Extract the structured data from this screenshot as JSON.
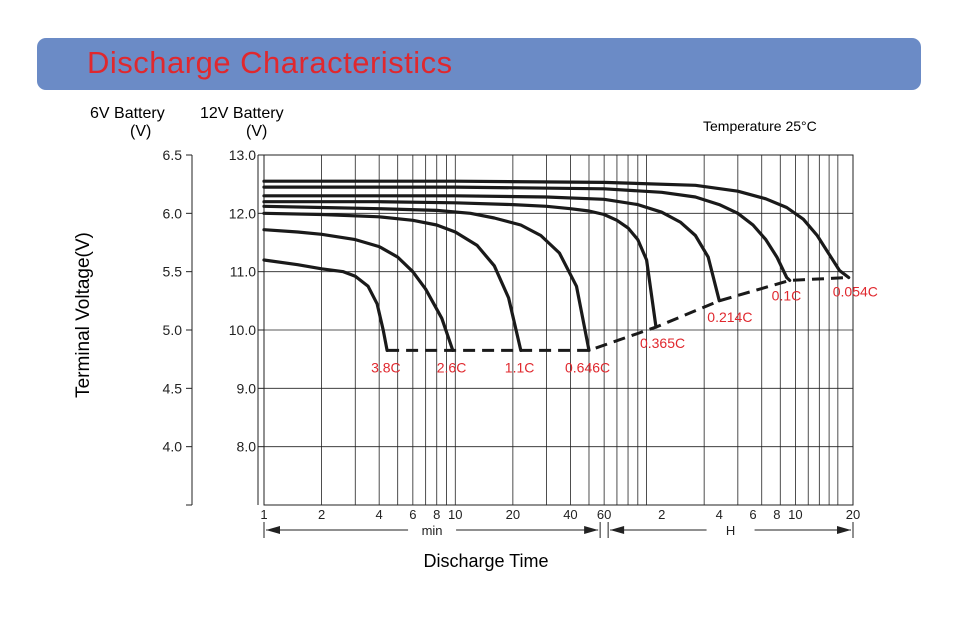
{
  "banner": {
    "title": "Discharge Characteristics",
    "color": "#6b8bc6",
    "title_color": "#e0282e"
  },
  "chart_data": {
    "type": "line",
    "title": "",
    "xlabel": "Discharge Time",
    "ylabel": "Terminal Voltage(V)",
    "note": "Temperature 25°C",
    "axis_6v": {
      "title": "6V Battery",
      "unit": "(V)",
      "ticks": [
        "6.5",
        "6.0",
        "5.5",
        "5.0",
        "4.5",
        "4.0"
      ]
    },
    "axis_12v": {
      "title": "12V Battery",
      "unit": "(V)",
      "ticks": [
        "13.0",
        "12.0",
        "11.0",
        "10.0",
        "9.0",
        "8.0"
      ]
    },
    "ylim": [
      7.0,
      13.0
    ],
    "x_scale": "log",
    "x_ticks_min": [
      "1",
      "2",
      "4",
      "6",
      "8",
      "10",
      "20",
      "40",
      "60"
    ],
    "x_ticks_h": [
      "2",
      "4",
      "6",
      "8",
      "10",
      "20"
    ],
    "x_unit_min": "min",
    "x_unit_h": "H",
    "x_unit_note": "x values in minutes",
    "series": [
      {
        "name": "3.8C",
        "x": [
          1,
          1.5,
          2,
          2.6,
          3,
          3.5,
          3.9,
          4.2,
          4.4
        ],
        "y": [
          11.2,
          11.12,
          11.05,
          11.0,
          10.92,
          10.75,
          10.45,
          10.0,
          9.65
        ]
      },
      {
        "name": "2.6C",
        "x": [
          1,
          1.5,
          2,
          3,
          4,
          5,
          6,
          7,
          8.5,
          9.7
        ],
        "y": [
          11.72,
          11.68,
          11.64,
          11.55,
          11.43,
          11.25,
          11.0,
          10.7,
          10.2,
          9.65
        ]
      },
      {
        "name": "1.1C",
        "x": [
          1,
          2,
          4,
          6,
          8,
          10,
          13,
          16,
          19,
          22
        ],
        "y": [
          12.0,
          11.98,
          11.94,
          11.88,
          11.8,
          11.68,
          11.45,
          11.1,
          10.55,
          9.65
        ]
      },
      {
        "name": "0.646C",
        "x": [
          1,
          2,
          4,
          8,
          12,
          16,
          22,
          28,
          35,
          43,
          50
        ],
        "y": [
          12.12,
          12.1,
          12.08,
          12.05,
          12.0,
          11.92,
          11.8,
          11.62,
          11.32,
          10.75,
          9.65
        ]
      },
      {
        "name": "0.365C",
        "x": [
          1,
          4,
          10,
          20,
          30,
          40,
          50,
          60,
          70,
          80,
          90,
          100,
          112
        ],
        "y": [
          12.2,
          12.2,
          12.18,
          12.15,
          12.12,
          12.08,
          12.04,
          11.98,
          11.88,
          11.75,
          11.55,
          11.2,
          10.05
        ]
      },
      {
        "name": "0.214C",
        "x": [
          1,
          10,
          30,
          60,
          90,
          120,
          150,
          180,
          210,
          240
        ],
        "y": [
          12.3,
          12.3,
          12.28,
          12.24,
          12.15,
          12.02,
          11.85,
          11.62,
          11.25,
          10.5
        ]
      },
      {
        "name": "0.1C",
        "x": [
          1,
          10,
          60,
          120,
          180,
          240,
          300,
          360,
          420,
          480,
          540,
          560
        ],
        "y": [
          12.45,
          12.45,
          12.42,
          12.36,
          12.28,
          12.15,
          12.0,
          11.8,
          11.55,
          11.25,
          10.9,
          10.85
        ]
      },
      {
        "name": "0.054C",
        "x": [
          1,
          10,
          60,
          180,
          300,
          420,
          540,
          660,
          780,
          900,
          1020,
          1140
        ],
        "y": [
          12.55,
          12.55,
          12.53,
          12.48,
          12.38,
          12.25,
          12.1,
          11.9,
          11.62,
          11.3,
          11.02,
          10.9
        ]
      }
    ],
    "cutoff": {
      "x": [
        4.4,
        9.7,
        22,
        50,
        112,
        240,
        560,
        1140
      ],
      "y": [
        9.65,
        9.65,
        9.65,
        9.65,
        10.05,
        10.5,
        10.85,
        10.9
      ]
    },
    "labels": [
      "3.8C",
      "2.6C",
      "1.1C",
      "0.646C",
      "0.365C",
      "0.214C",
      "0.1C",
      "0.054C"
    ],
    "grid": true,
    "colors": {
      "curve": "#1a1a1a",
      "label": "#e0282e",
      "grid": "#222222"
    }
  }
}
